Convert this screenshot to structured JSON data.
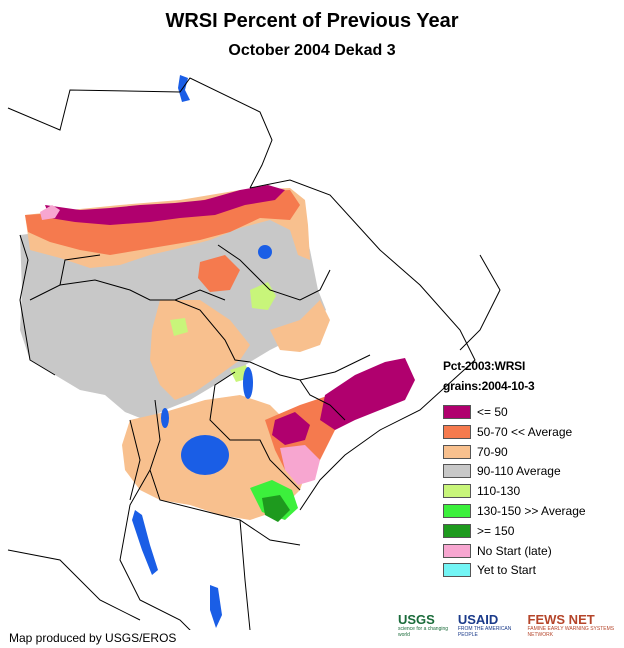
{
  "title": "WRSI Percent of Previous Year",
  "subtitle": "October 2004 Dekad 3",
  "legend": {
    "header_1": "Pct-2003:WRSI",
    "header_2": "grains:2004-10-3",
    "items": [
      {
        "label": "<= 50",
        "color": "#b0006e"
      },
      {
        "label": "50-70 << Average",
        "color": "#f57a4e"
      },
      {
        "label": "70-90",
        "color": "#f8c08e"
      },
      {
        "label": "90-110 Average",
        "color": "#c8c8c8"
      },
      {
        "label": "110-130",
        "color": "#c8f57a"
      },
      {
        "label": "130-150 >> Average",
        "color": "#3cf03c"
      },
      {
        "label": ">= 150",
        "color": "#1e9a1e"
      },
      {
        "label": "No Start (late)",
        "color": "#f7a6d0"
      },
      {
        "label": "Yet to Start",
        "color": "#73f5f5"
      }
    ]
  },
  "credit": "Map produced by USGS/EROS",
  "logos": {
    "usgs": "USGS",
    "usgs_tagline": "science for a changing world",
    "usaid": "USAID",
    "usaid_tagline": "FROM THE AMERICAN PEOPLE",
    "fews": "FEWS NET",
    "fews_tagline": "FAMINE EARLY WARNING SYSTEMS NETWORK"
  },
  "colors": {
    "water": "#1a5ee6",
    "border": "#000000",
    "background": "#ffffff"
  }
}
